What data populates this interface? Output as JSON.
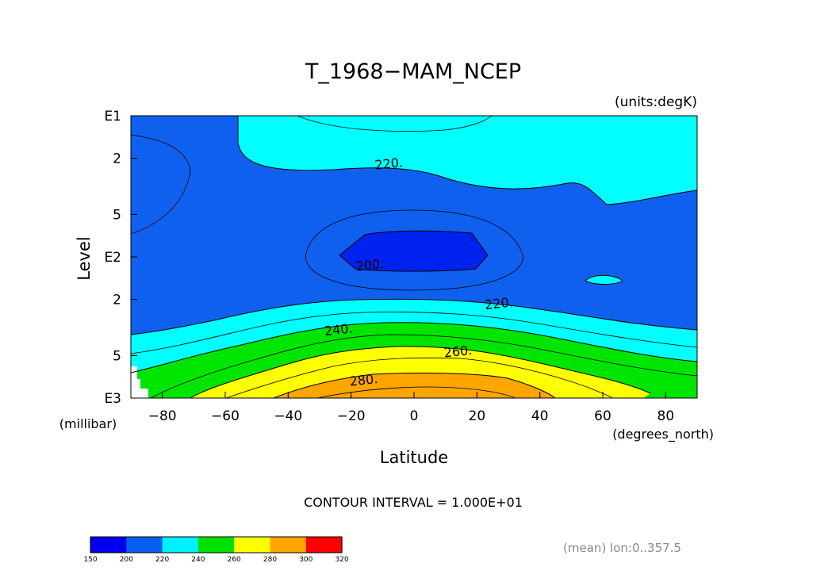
{
  "chart_data": {
    "type": "contour",
    "title": "T_1968−MAM_NCEP",
    "units_label": "(units:degK)",
    "xlabel": "Latitude",
    "ylabel": "Level",
    "x_unit_label": "(degrees_north)",
    "y_unit_label": "(millibar)",
    "xlim": [
      -90,
      90
    ],
    "ylim_mb": [
      10,
      1000
    ],
    "x_ticks": [
      {
        "value": -80,
        "label": "−80"
      },
      {
        "value": -60,
        "label": "−60"
      },
      {
        "value": -40,
        "label": "−40"
      },
      {
        "value": -20,
        "label": "−20"
      },
      {
        "value": 0,
        "label": "0"
      },
      {
        "value": 20,
        "label": "20"
      },
      {
        "value": 40,
        "label": "40"
      },
      {
        "value": 60,
        "label": "60"
      },
      {
        "value": 80,
        "label": "80"
      }
    ],
    "y_ticks": [
      {
        "value_mb": 10,
        "label": "E1"
      },
      {
        "value_mb": 20,
        "label": "2"
      },
      {
        "value_mb": 50,
        "label": "5"
      },
      {
        "value_mb": 100,
        "label": "E2"
      },
      {
        "value_mb": 200,
        "label": "2"
      },
      {
        "value_mb": 500,
        "label": "5"
      },
      {
        "value_mb": 1000,
        "label": "E3"
      }
    ],
    "contour_labels": [
      {
        "text": "220.",
        "lat": -8,
        "mb": 22
      },
      {
        "text": "200.",
        "lat": -14,
        "mb": 115
      },
      {
        "text": "220.",
        "lat": 27,
        "mb": 215
      },
      {
        "text": "240.",
        "lat": -24,
        "mb": 330
      },
      {
        "text": "260.",
        "lat": 14,
        "mb": 470
      },
      {
        "text": "280.",
        "lat": -16,
        "mb": 750
      }
    ],
    "contour_interval_text": "CONTOUR INTERVAL = 1.000E+01",
    "footnote": "(mean) lon:0..357.5",
    "colorbar": {
      "levels": [
        150,
        200,
        220,
        240,
        260,
        280,
        300,
        320
      ],
      "level_labels": [
        "150",
        "200",
        "220",
        "240",
        "260",
        "280",
        "300",
        "320"
      ],
      "colors": [
        "#0000ee",
        "#0a5ff0",
        "#00f0ff",
        "#00e100",
        "#ffff00",
        "#ffa500",
        "#ff0000"
      ]
    },
    "fill_colors": {
      "band_200_220": "#1060f0",
      "band_lt_200": "#0022ee",
      "band_220_240": "#00ffff",
      "band_240_260": "#00e500",
      "band_260_280": "#ffff00",
      "band_280_300": "#ffa500",
      "missing": "#ffffff"
    }
  }
}
